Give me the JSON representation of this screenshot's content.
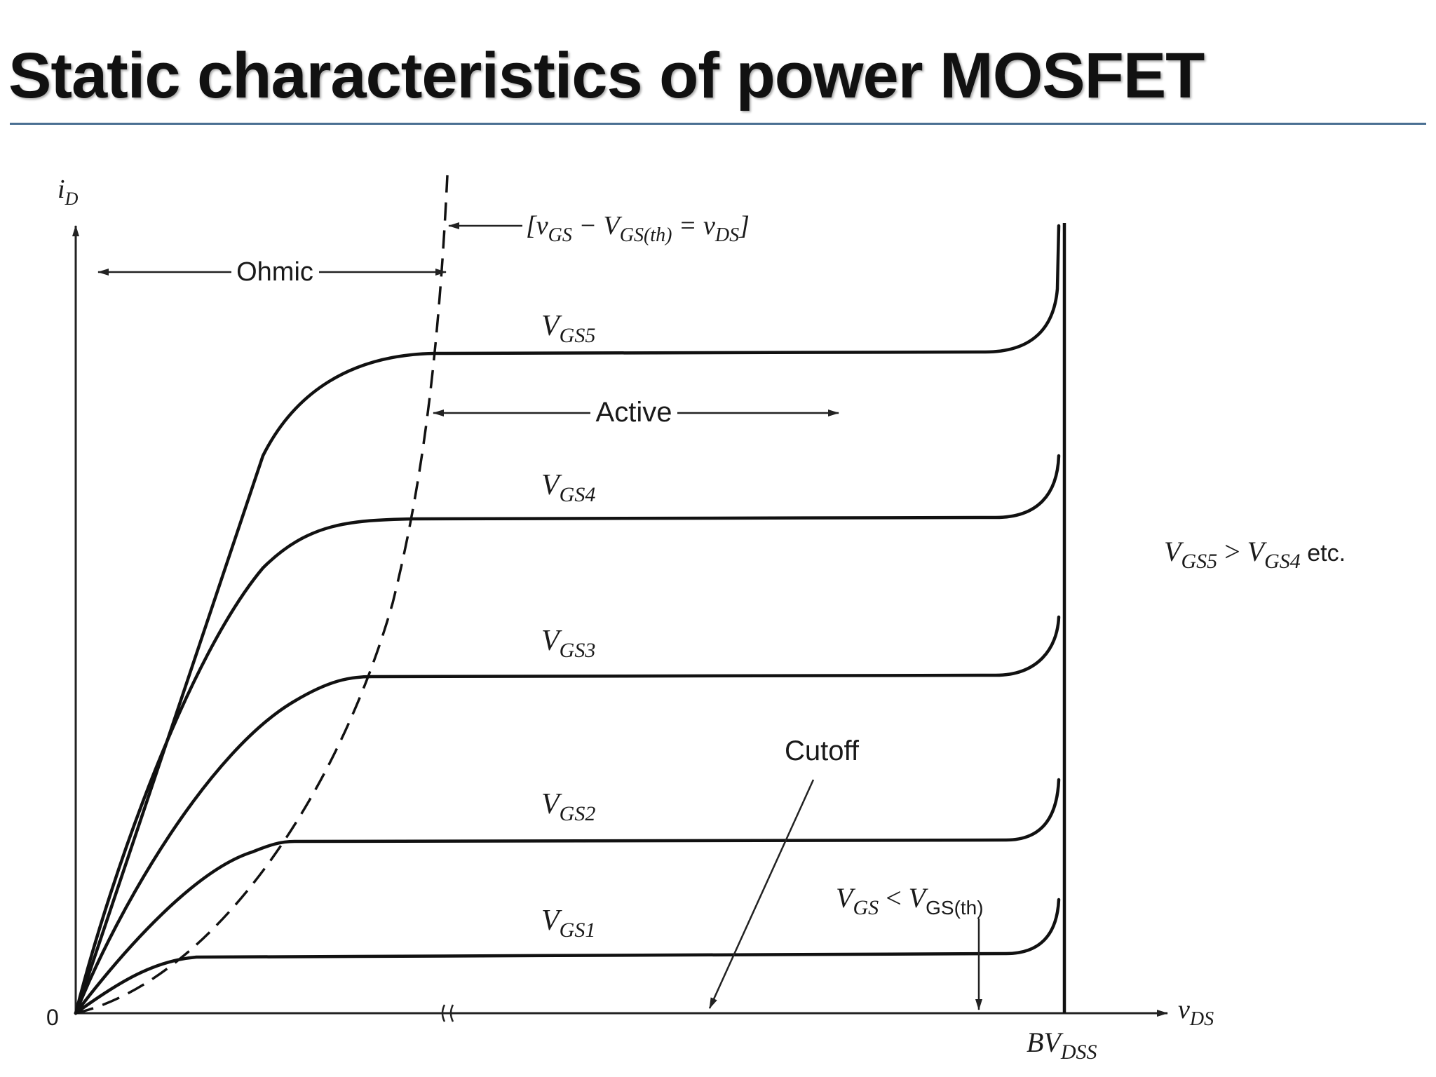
{
  "slide": {
    "title": "Static characteristics of power MOSFET"
  },
  "diagram": {
    "y_axis_label": "i",
    "y_axis_sub": "D",
    "x_axis_label": "v",
    "x_axis_sub": "DS",
    "origin_label": "0",
    "breakdown_label": "BV",
    "breakdown_sub": "DSS",
    "boundary_label_parts": [
      "[v",
      "GS",
      " − V",
      "GS(th)",
      " = v",
      "DS",
      "]"
    ],
    "ohmic_label": "Ohmic",
    "active_label": "Active",
    "cutoff_label": "Cutoff",
    "curves": [
      {
        "name": "V",
        "sub": "GS5"
      },
      {
        "name": "V",
        "sub": "GS4"
      },
      {
        "name": "V",
        "sub": "GS3"
      },
      {
        "name": "V",
        "sub": "GS2"
      },
      {
        "name": "V",
        "sub": "GS1"
      }
    ],
    "order_note": {
      "a": "V",
      "a_sub": "GS5",
      "rel": " > ",
      "b": "V",
      "b_sub": "GS4",
      "tail": " etc."
    },
    "cutoff_condition": {
      "a": "V",
      "a_sub": "GS",
      "rel": " < ",
      "b": "V",
      "b_sub": "GS(th)"
    }
  }
}
